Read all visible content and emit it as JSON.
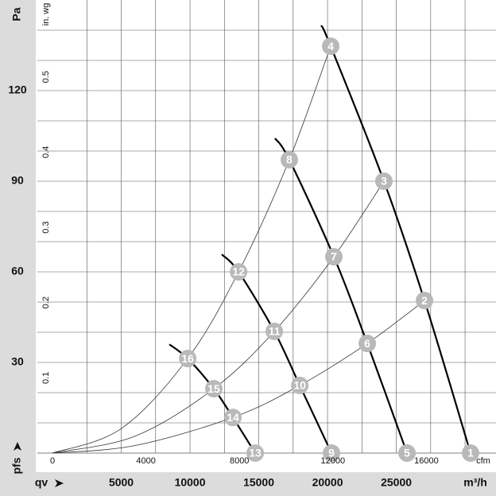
{
  "chart_data": {
    "type": "line",
    "xlabel": "qv",
    "xunit": "m³/h",
    "x2unit": "cfm",
    "ylabel": "Pa",
    "ylabel_bottom": "pfs",
    "y2unit": "in. wg",
    "xlim": [
      -1100,
      32250
    ],
    "x2lim": [
      -647,
      18980
    ],
    "ylim": [
      0,
      150
    ],
    "y2lim": [
      0,
      0.6022
    ],
    "xticks": [
      5000,
      10000,
      15000,
      20000,
      25000
    ],
    "x2ticks": [
      0,
      4000,
      8000,
      12000,
      16000
    ],
    "yticks": [
      30,
      60,
      90,
      120
    ],
    "y2ticks": [
      0.1,
      0.2,
      0.3,
      0.4,
      0.5
    ],
    "x_grid": [
      2500,
      5000,
      7500,
      10000,
      12500,
      15000,
      17500,
      20000,
      22500,
      25000,
      27500,
      30000
    ],
    "y_grid": [
      10,
      20,
      30,
      40,
      50,
      60,
      70,
      80,
      90,
      100,
      110,
      120,
      130,
      140
    ],
    "grid": true,
    "series": [
      {
        "color": "#000000",
        "width": 2.2,
        "x": [
          19540,
          20230,
          24100,
          27050,
          30400
        ],
        "values": [
          141.6,
          134.7,
          90,
          50.5,
          0
        ]
      },
      {
        "color": "#000000",
        "width": 2.2,
        "x": [
          16180,
          17220,
          20460,
          22890,
          25780
        ],
        "values": [
          104.2,
          97.1,
          65,
          36.3,
          0
        ]
      },
      {
        "color": "#000000",
        "width": 2.2,
        "x": [
          12310,
          13530,
          16130,
          17980,
          20290
        ],
        "values": [
          65.8,
          60,
          40.3,
          22.4,
          0
        ]
      },
      {
        "color": "#000000",
        "width": 2.2,
        "x": [
          8500,
          9830,
          11730,
          13120,
          14740
        ],
        "values": [
          36,
          31.3,
          21.3,
          11.8,
          0
        ]
      },
      {
        "color": "#333333",
        "width": 0.8,
        "x": [
          0,
          5000,
          9830,
          13530,
          17220,
          20230
        ],
        "values": [
          0,
          8.1,
          31.3,
          60,
          97.1,
          134.7
        ]
      },
      {
        "color": "#333333",
        "width": 0.8,
        "x": [
          0,
          6000,
          11730,
          16130,
          20460,
          24100
        ],
        "values": [
          0,
          5.6,
          21.3,
          40.3,
          65,
          90
        ]
      },
      {
        "color": "#333333",
        "width": 0.8,
        "x": [
          0,
          6000,
          13120,
          17980,
          22890,
          27050
        ],
        "values": [
          0,
          2.5,
          11.8,
          22.4,
          36.3,
          50.5
        ]
      }
    ],
    "points": {
      "color": "#b9b9b9",
      "labels": [
        "1",
        "2",
        "3",
        "4",
        "5",
        "6",
        "7",
        "8",
        "9",
        "10",
        "11",
        "12",
        "13",
        "14",
        "15",
        "16"
      ],
      "x": [
        30400,
        27050,
        24100,
        20230,
        25780,
        22890,
        20460,
        17220,
        20290,
        17980,
        16130,
        13530,
        14740,
        13120,
        11730,
        9830
      ],
      "y": [
        0,
        50.5,
        90,
        134.7,
        0,
        36.3,
        65,
        97.1,
        0,
        22.4,
        40.3,
        60,
        0,
        11.8,
        21.3,
        31.3
      ]
    }
  }
}
